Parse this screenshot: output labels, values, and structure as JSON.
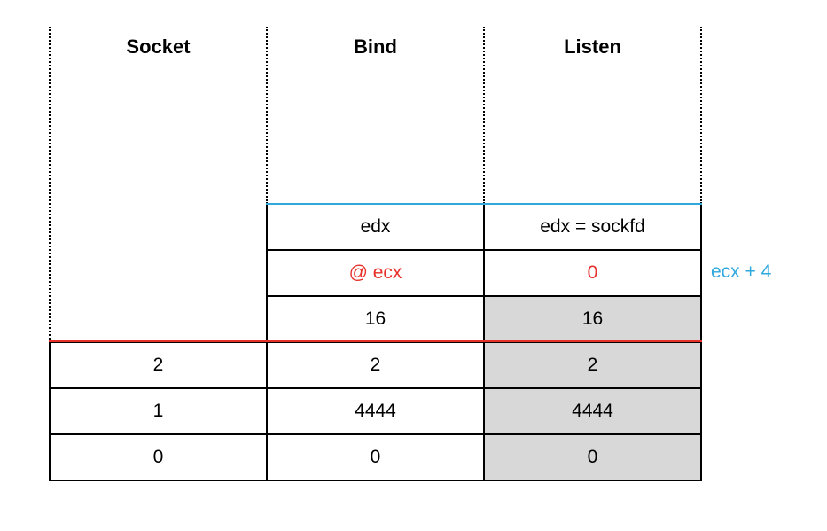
{
  "headers": [
    "Socket",
    "Bind",
    "Listen"
  ],
  "bind_col": {
    "upper": [
      "edx",
      "@ ecx",
      "16"
    ],
    "lower": [
      "2",
      "4444",
      "0"
    ]
  },
  "listen_col": {
    "upper": [
      "edx = sockfd",
      "0",
      "16"
    ],
    "lower": [
      "2",
      "4444",
      "0"
    ]
  },
  "socket_col": {
    "lower": [
      "2",
      "1",
      "0"
    ]
  },
  "side_note": "ecx + 4",
  "colors": {
    "blue_line": "#2fa8dc",
    "red_line": "#e8302a",
    "shade": "#d8d8d8"
  }
}
